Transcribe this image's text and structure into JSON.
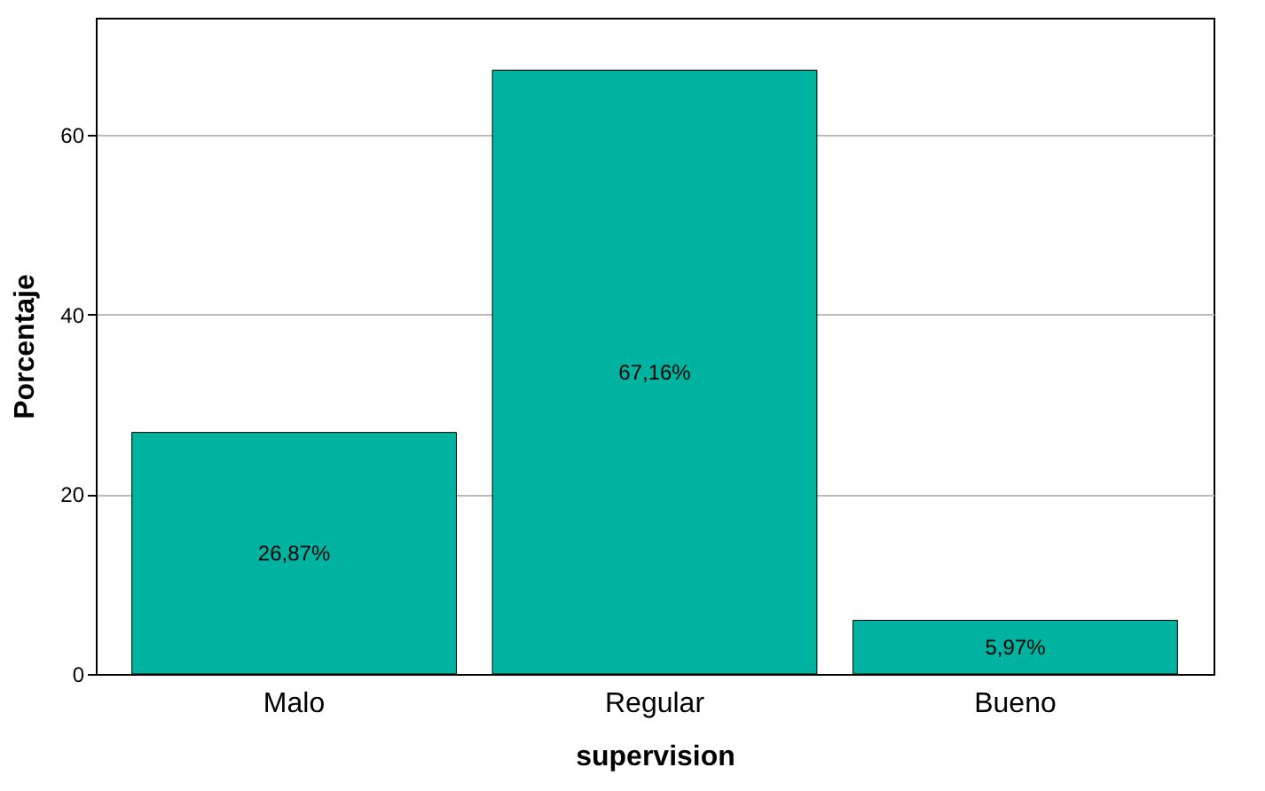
{
  "chart_data": {
    "type": "bar",
    "xlabel": "supervision",
    "ylabel": "Porcentaje",
    "categories": [
      "Malo",
      "Regular",
      "Bueno"
    ],
    "values": [
      26.87,
      67.16,
      5.97
    ],
    "value_labels": [
      "26,87%",
      "67,16%",
      "5,97%"
    ],
    "color": "#00b3a0",
    "ylim": [
      0,
      73
    ],
    "yticks": [
      0,
      20,
      40,
      60
    ],
    "grid": "y"
  }
}
